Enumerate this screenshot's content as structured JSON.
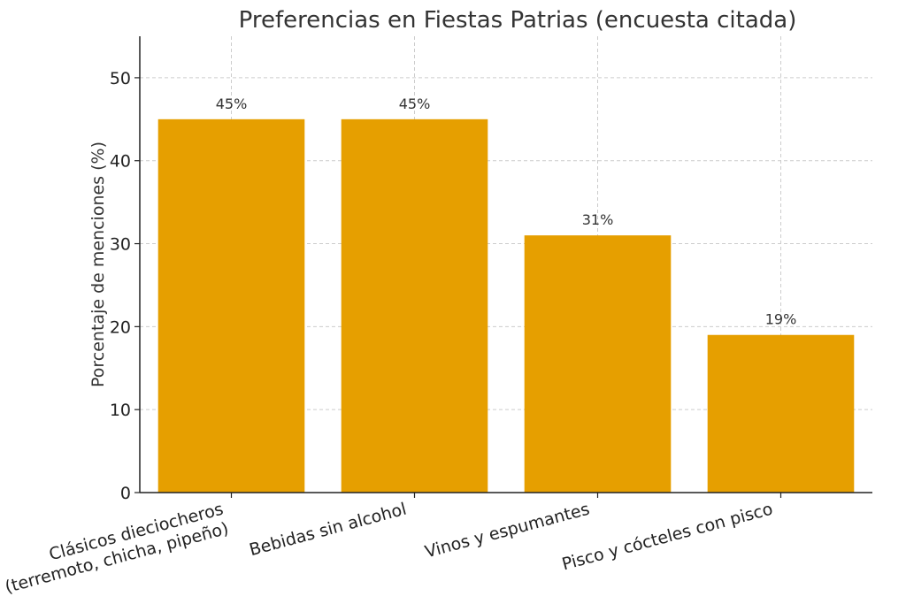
{
  "chart_data": {
    "type": "bar",
    "title": "Preferencias en Fiestas Patrias (encuesta citada)",
    "xlabel": "",
    "ylabel": "Porcentaje de menciones (%)",
    "categories": [
      "Clásicos dieciocheros\n(terremoto, chicha, pipeño)",
      "Bebidas sin alcohol",
      "Vinos y espumantes",
      "Pisco y cócteles con pisco"
    ],
    "values": [
      45,
      45,
      31,
      19
    ],
    "data_labels": [
      "45%",
      "45%",
      "31%",
      "19%"
    ],
    "ylim": [
      0,
      55
    ],
    "yticks": [
      0,
      10,
      20,
      30,
      40,
      50
    ],
    "grid": true,
    "bar_color": "#E69F00"
  }
}
